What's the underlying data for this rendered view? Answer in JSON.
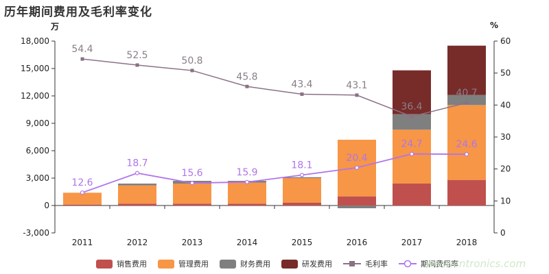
{
  "title": "历年期间费用及毛利率变化",
  "units": {
    "left": "万",
    "right": "%"
  },
  "watermark": "www.cntronics.com",
  "colors": {
    "sales": "#c0504d",
    "admin": "#f79646",
    "finance": "#7f7f7f",
    "rnd": "#772c2a",
    "gross_margin": "#8a7186",
    "expense_ratio": "#b074ea",
    "axis": "#333333",
    "label_gray": "#8a7e88",
    "label_purple": "#b074ea"
  },
  "chart_data": {
    "type": "bar",
    "stacked": true,
    "categories": [
      "2011",
      "2012",
      "2013",
      "2014",
      "2015",
      "2016",
      "2017",
      "2018"
    ],
    "series": [
      {
        "name": "销售费用",
        "values": [
          100,
          200,
          200,
          200,
          300,
          1000,
          2400,
          2800
        ]
      },
      {
        "name": "管理费用",
        "values": [
          1300,
          2000,
          2200,
          2300,
          2700,
          6200,
          5900,
          8200
        ]
      },
      {
        "name": "财务费用",
        "values": [
          0,
          200,
          300,
          200,
          100,
          -300,
          1700,
          1100
        ]
      },
      {
        "name": "研发费用",
        "values": [
          0,
          0,
          0,
          0,
          0,
          0,
          4800,
          5400
        ]
      }
    ],
    "lines": [
      {
        "name": "毛利率",
        "axis": "right",
        "marker": "square",
        "values": [
          54.4,
          52.5,
          50.8,
          45.8,
          43.4,
          43.1,
          36.4,
          40.7
        ]
      },
      {
        "name": "期间费用率",
        "axis": "right",
        "marker": "circle",
        "values": [
          12.6,
          18.7,
          15.6,
          15.9,
          18.1,
          20.4,
          24.7,
          24.6
        ]
      }
    ],
    "y_left": {
      "min": -3000,
      "max": 18000,
      "ticks": [
        "-3,000",
        "0",
        "3,000",
        "6,000",
        "9,000",
        "12,000",
        "15,000",
        "18,000"
      ]
    },
    "y_right": {
      "min": 0,
      "max": 60,
      "ticks": [
        "0",
        "10",
        "20",
        "30",
        "40",
        "50",
        "60"
      ]
    },
    "grid": false,
    "legend_position": "bottom"
  }
}
